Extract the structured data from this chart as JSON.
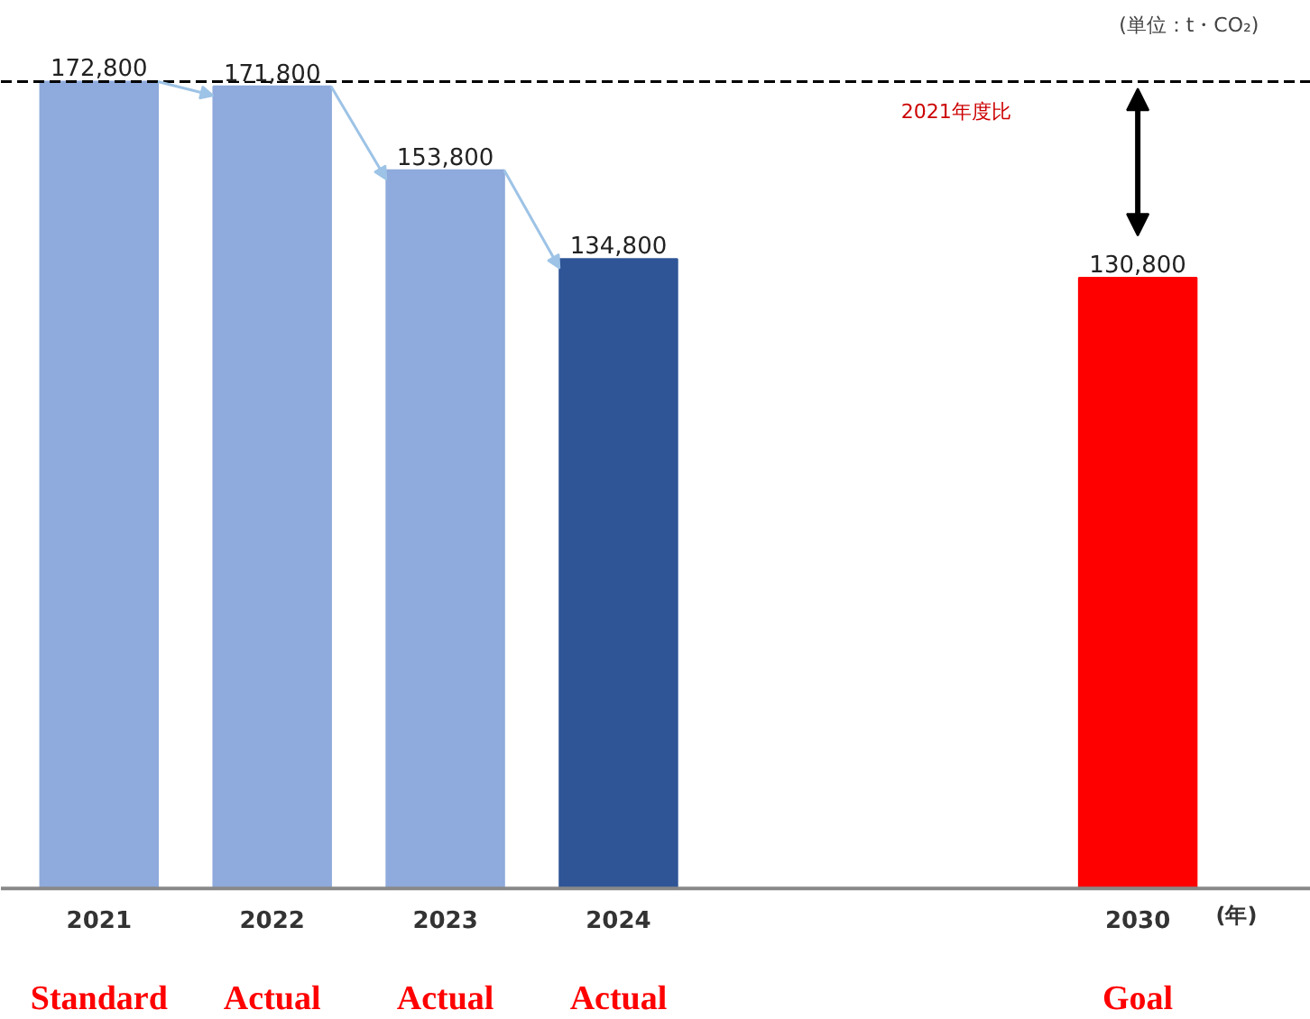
{
  "chart_data": {
    "type": "bar",
    "categories": [
      "2021",
      "2022",
      "2023",
      "2024",
      null,
      null,
      "2030"
    ],
    "values": [
      172800,
      171800,
      153800,
      134800,
      null,
      null,
      130800
    ],
    "value_labels": [
      "172,800",
      "171,800",
      "153,800",
      "134,800",
      null,
      null,
      "130,800"
    ],
    "colors": [
      "#8faadc",
      "#8faadc",
      "#8faadc",
      "#2f5597",
      null,
      null,
      "#ff0000"
    ],
    "grid": false,
    "ref_lines": [
      {
        "axis": "y",
        "value": 172800,
        "color": "#000000",
        "line_style": "dashed"
      }
    ],
    "annotations": [
      "(単位：t・CO₂)",
      "2021年度比",
      "(年)",
      "Standard",
      "Actual",
      "Actual",
      "Actual",
      "Goal"
    ]
  }
}
